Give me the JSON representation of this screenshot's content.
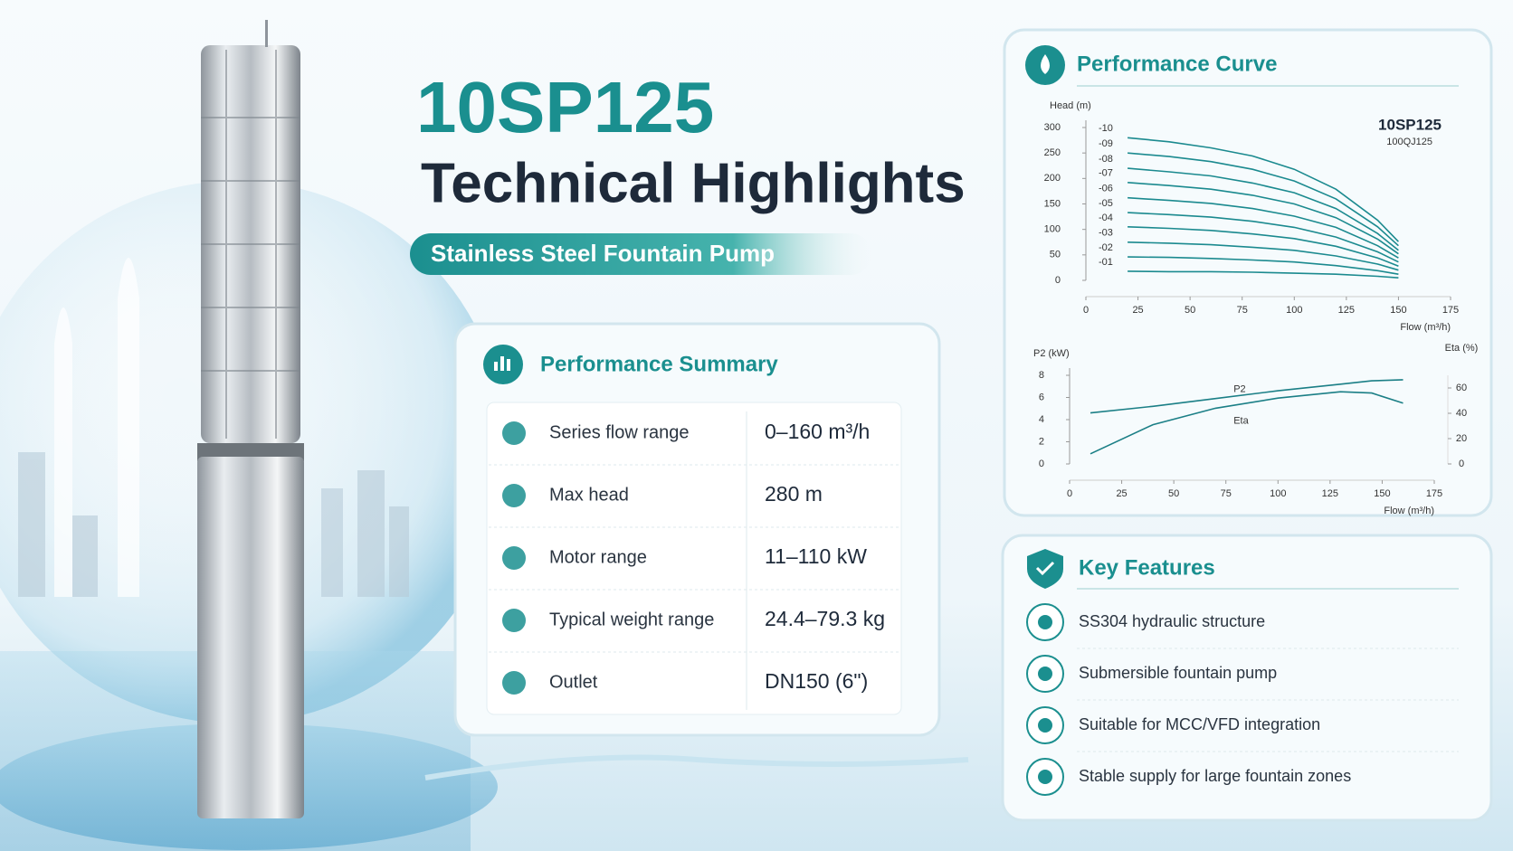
{
  "header": {
    "model": "10SP125",
    "title": "Technical Highlights",
    "subtitle": "Stainless Steel Fountain Pump"
  },
  "summary": {
    "title": "Performance Summary",
    "rows": [
      {
        "label": "Series flow range",
        "value": "0–160 m³/h"
      },
      {
        "label": "Max head",
        "value": "280 m"
      },
      {
        "label": "Motor range",
        "value": "11–110 kW"
      },
      {
        "label": "Typical weight range",
        "value": "24.4–79.3 kg"
      },
      {
        "label": "Outlet",
        "value": "DN150 (6\")"
      }
    ]
  },
  "features": {
    "title": "Key Features",
    "items": [
      "SS304 hydraulic structure",
      "Submersible fountain pump",
      "Suitable for MCC/VFD integration",
      "Stable supply for large fountain zones"
    ]
  },
  "chart_data": [
    {
      "type": "line",
      "title": "Performance Curve",
      "model": "10SP125",
      "model_alt": "100QJ125",
      "y_label": "Head (m)",
      "x_label": "Flow (m³/h)",
      "x": [
        20,
        40,
        60,
        80,
        100,
        120,
        140,
        150
      ],
      "xlim": [
        0,
        175
      ],
      "xticks": [
        0,
        25,
        50,
        75,
        100,
        125,
        150,
        175
      ],
      "ylim": [
        0,
        300
      ],
      "yticks": [
        0,
        50,
        100,
        150,
        200,
        250,
        300
      ],
      "series": [
        {
          "name": "-10",
          "color": "#1b8a8f",
          "values": [
            280,
            272,
            260,
            244,
            218,
            179,
            118,
            76
          ]
        },
        {
          "name": "-09",
          "color": "#1b8a8f",
          "values": [
            250,
            243,
            233,
            218,
            195,
            160,
            105,
            68
          ]
        },
        {
          "name": "-08",
          "color": "#1b8a8f",
          "values": [
            220,
            213,
            205,
            191,
            172,
            141,
            92,
            59
          ]
        },
        {
          "name": "-07",
          "color": "#1b8a8f",
          "values": [
            192,
            186,
            179,
            167,
            150,
            123,
            81,
            52
          ]
        },
        {
          "name": "-06",
          "color": "#1b8a8f",
          "values": [
            162,
            157,
            151,
            141,
            126,
            104,
            68,
            44
          ]
        },
        {
          "name": "-05",
          "color": "#1b8a8f",
          "values": [
            133,
            129,
            124,
            116,
            104,
            85,
            56,
            36
          ]
        },
        {
          "name": "-04",
          "color": "#1b8a8f",
          "values": [
            105,
            102,
            98,
            91,
            82,
            67,
            44,
            28
          ]
        },
        {
          "name": "-03",
          "color": "#1b8a8f",
          "values": [
            75,
            73,
            70,
            65,
            59,
            48,
            32,
            20
          ]
        },
        {
          "name": "-02",
          "color": "#1b8a8f",
          "values": [
            46,
            45,
            43,
            40,
            36,
            29,
            19,
            12
          ]
        },
        {
          "name": "-01",
          "color": "#1b8a8f",
          "values": [
            18,
            17,
            17,
            16,
            14,
            12,
            8,
            5
          ]
        }
      ]
    },
    {
      "type": "line",
      "y_label": "P2 (kW)",
      "y2_label": "Eta (%)",
      "x_label": "Flow (m³/h)",
      "x": [
        10,
        40,
        70,
        100,
        130,
        145,
        160
      ],
      "xlim": [
        0,
        175
      ],
      "xticks": [
        0,
        25,
        50,
        75,
        100,
        125,
        150,
        175
      ],
      "ylim": [
        0,
        8
      ],
      "yticks": [
        0,
        2,
        4,
        6,
        8
      ],
      "y2lim": [
        0,
        70
      ],
      "y2ticks": [
        0,
        20,
        40,
        60
      ],
      "series": [
        {
          "name": "P2",
          "color": "#1b7f86",
          "values": [
            4.6,
            5.2,
            5.9,
            6.6,
            7.2,
            7.5,
            7.6
          ]
        },
        {
          "name": "Eta",
          "color": "#1b7f86",
          "axis": "y2",
          "values": [
            8,
            31,
            44,
            52,
            57,
            56,
            48
          ]
        }
      ]
    }
  ]
}
